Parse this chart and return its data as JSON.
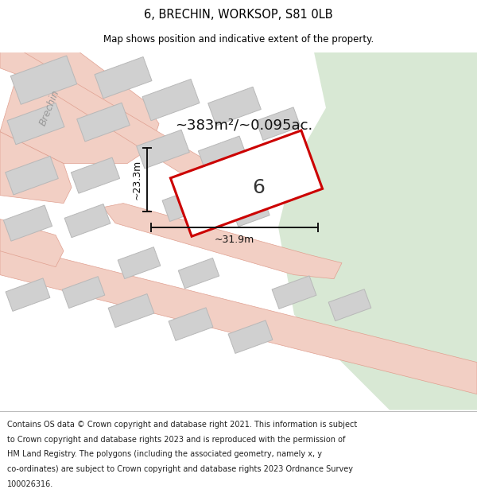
{
  "title": "6, BRECHIN, WORKSOP, S81 0LB",
  "subtitle": "Map shows position and indicative extent of the property.",
  "footer_lines": [
    "Contains OS data © Crown copyright and database right 2021. This information is subject",
    "to Crown copyright and database rights 2023 and is reproduced with the permission of",
    "HM Land Registry. The polygons (including the associated geometry, namely x, y",
    "co-ordinates) are subject to Crown copyright and database rights 2023 Ordnance Survey",
    "100026316."
  ],
  "area_label": "~383m²/~0.095ac.",
  "width_label": "~31.9m",
  "height_label": "~23.3m",
  "plot_number": "6",
  "bg_color": "#f0f0f0",
  "green_area_color": "#d8e8d4",
  "road_color": "#f2cfc4",
  "building_color": "#d0d0d0",
  "building_outline_color": "#b8b8b8",
  "plot_fill_color": "#ffffff",
  "plot_edge_color": "#cc0000",
  "dim_line_color": "#111111",
  "street_label_color": "#999999",
  "title_fontsize": 10.5,
  "subtitle_fontsize": 8.5,
  "footer_fontsize": 7.0,
  "area_fontsize": 13,
  "dim_fontsize": 9,
  "street_fontsize": 9
}
